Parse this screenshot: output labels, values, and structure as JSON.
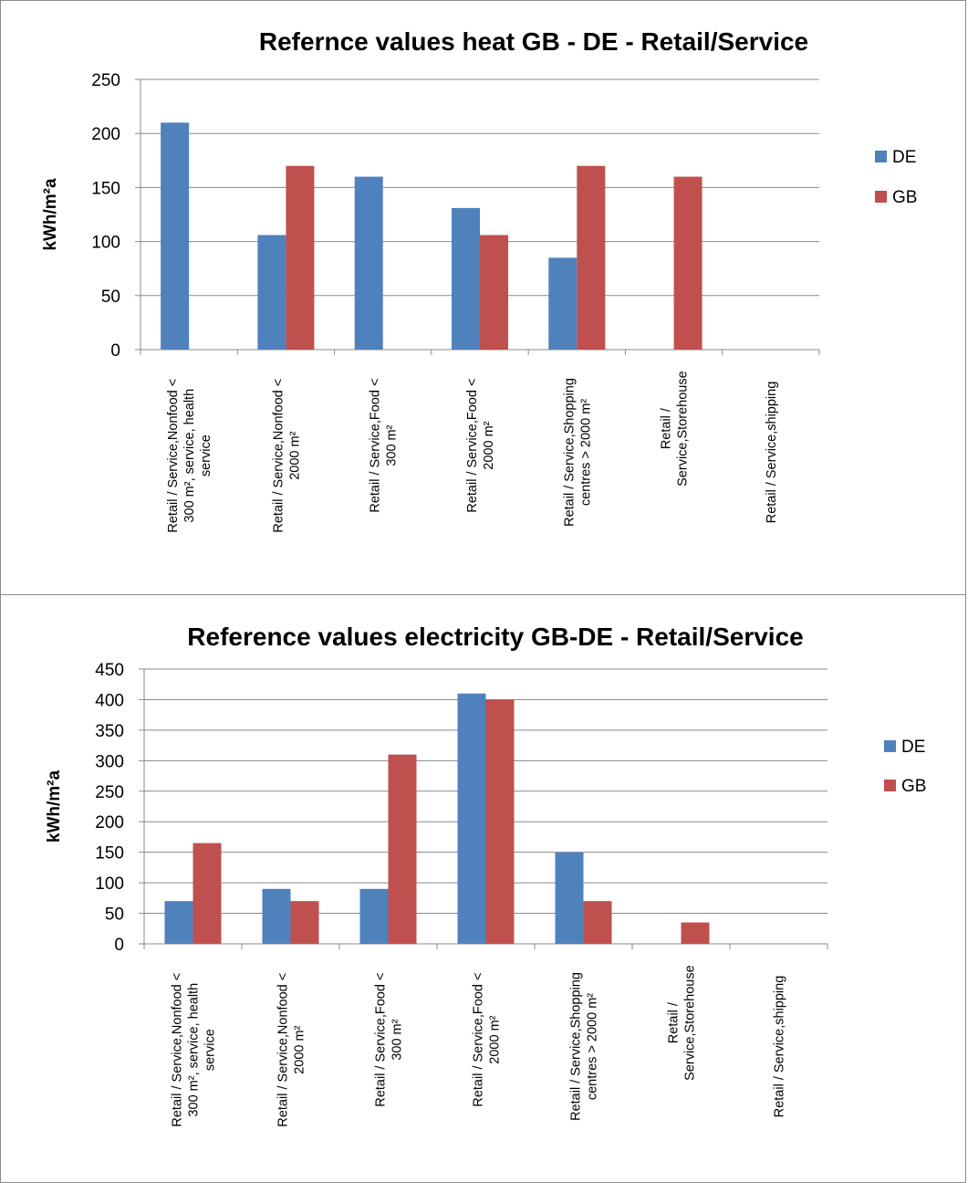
{
  "chart_data": [
    {
      "type": "bar",
      "title": "Refernce values heat GB - DE - Retail/Service",
      "ylabel": "kWh/m²a",
      "xlabel": "",
      "ylim": [
        0,
        250
      ],
      "yticks": [
        "0",
        "50",
        "100",
        "150",
        "200",
        "250"
      ],
      "categories": [
        [
          "Retail / Service,Nonfood <",
          "300 m², service, health",
          "service"
        ],
        [
          "Retail / Service,Nonfood <",
          "2000 m²"
        ],
        [
          "Retail / Service,Food <",
          "300 m²"
        ],
        [
          "Retail / Service,Food <",
          "2000 m²"
        ],
        [
          "Retail / Service,Shopping",
          "centres > 2000 m²"
        ],
        [
          "Retail /",
          "Service,Storehouse"
        ],
        [
          "Retail / Service,shipping"
        ]
      ],
      "series": [
        {
          "name": "DE",
          "color": "#4F81BD",
          "values": [
            210,
            106,
            160,
            131,
            85,
            0,
            0
          ]
        },
        {
          "name": "GB",
          "color": "#C0504D",
          "values": [
            0,
            170,
            0,
            106,
            170,
            160,
            0
          ]
        }
      ],
      "grid": true,
      "legend": "right"
    },
    {
      "type": "bar",
      "title": "Reference values electricity GB-DE - Retail/Service",
      "ylabel": "kWh/m²a",
      "xlabel": "",
      "ylim": [
        0,
        450
      ],
      "yticks": [
        "0",
        "50",
        "100",
        "150",
        "200",
        "250",
        "300",
        "350",
        "400",
        "450"
      ],
      "categories": [
        [
          "Retail / Service,Nonfood <",
          "300 m², service, health",
          "service"
        ],
        [
          "Retail / Service,Nonfood <",
          "2000 m²"
        ],
        [
          "Retail / Service,Food <",
          "300 m²"
        ],
        [
          "Retail / Service,Food <",
          "2000 m²"
        ],
        [
          "Retail / Service,Shopping",
          "centres > 2000 m²"
        ],
        [
          "Retail /",
          "Service,Storehouse"
        ],
        [
          "Retail / Service,shipping"
        ]
      ],
      "series": [
        {
          "name": "DE",
          "color": "#4F81BD",
          "values": [
            70,
            90,
            90,
            410,
            150,
            0,
            0
          ]
        },
        {
          "name": "GB",
          "color": "#C0504D",
          "values": [
            165,
            70,
            310,
            400,
            70,
            35,
            0
          ]
        }
      ],
      "grid": true,
      "legend": "right"
    }
  ]
}
